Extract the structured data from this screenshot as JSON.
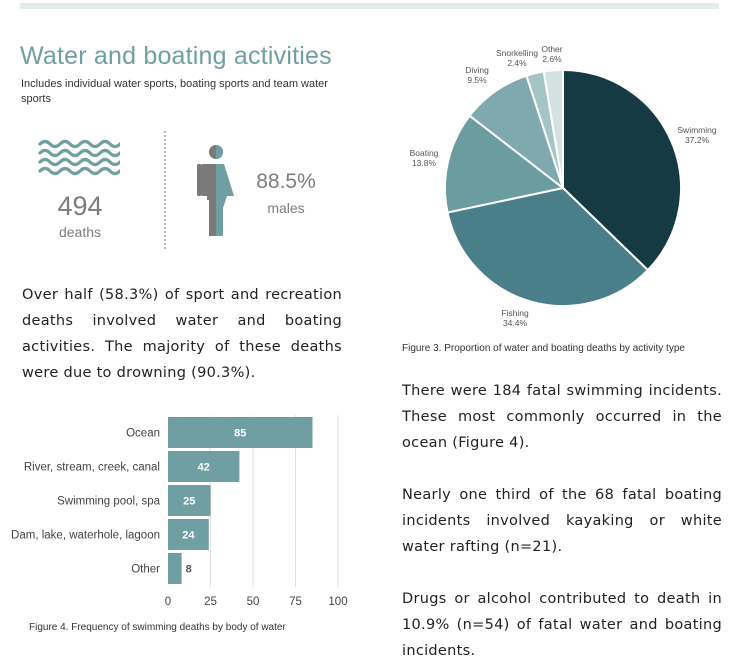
{
  "section": {
    "title": "Water and boating activities",
    "subtitle": "Includes individual water sports, boating sports and team water sports"
  },
  "stats": {
    "deaths_value": "494",
    "deaths_label": "deaths",
    "males_value": "88.5%",
    "males_label": "males"
  },
  "icons": {
    "waves": "waves-icon",
    "gender": "male-female-icon"
  },
  "paragraphs": {
    "summary": "Over half (58.3%) of sport and recreation deaths involved water and boating activities. The majority of these deaths were due to drowning (90.3%).",
    "swimming": "There were 184 fatal swimming incidents. These most commonly occurred in the ocean (Figure 4).",
    "boating": "Nearly one third of the 68 fatal boating incidents involved kayaking or white water rafting (n=21).",
    "drugs": "Drugs or alcohol contributed to death in 10.9% (n=54) of fatal water and boating incidents."
  },
  "colors": {
    "title": "#6f9ea3",
    "bar": "#6f9ea3",
    "swimming": "#153a43",
    "fishing": "#4a7f8a",
    "boating": "#6b9ca0",
    "diving": "#7fa9ae",
    "snorkelling": "#a5c4c6",
    "other": "#d3e1e1",
    "icon_gray": "#7a7a7a",
    "icon_teal": "#6f9ea3"
  },
  "chart_data": [
    {
      "id": "figure3",
      "type": "pie",
      "caption": "Figure 3. Proportion of water and boating deaths by activity type",
      "slices": [
        {
          "label": "Swimming",
          "value": 37.2,
          "value_label": "37.2%"
        },
        {
          "label": "Fishing",
          "value": 34.4,
          "value_label": "34.4%"
        },
        {
          "label": "Boating",
          "value": 13.8,
          "value_label": "13.8%"
        },
        {
          "label": "Diving",
          "value": 9.5,
          "value_label": "9.5%"
        },
        {
          "label": "Snorkelling",
          "value": 2.4,
          "value_label": "2.4%"
        },
        {
          "label": "Other",
          "value": 2.6,
          "value_label": "2.6%"
        }
      ]
    },
    {
      "id": "figure4",
      "type": "bar",
      "orientation": "horizontal",
      "caption": "Figure 4. Frequency of swimming deaths by body of water",
      "categories": [
        "Ocean",
        "River, stream, creek, canal",
        "Swimming pool, spa",
        "Dam, lake, waterhole, lagoon",
        "Other"
      ],
      "values": [
        85,
        42,
        25,
        24,
        8
      ],
      "xlim": [
        0,
        100
      ],
      "xticks": [
        "0",
        "25",
        "50",
        "75",
        "100"
      ],
      "grid": true
    }
  ]
}
